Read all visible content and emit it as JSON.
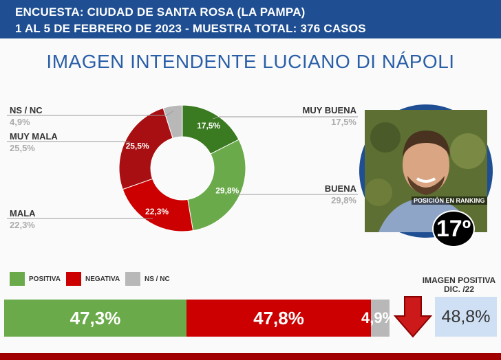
{
  "header": {
    "line1": "ENCUESTA: CIUDAD DE SANTA ROSA (LA PAMPA)",
    "line2": "1 AL 5 DE FEBRERO DE 2023 - MUESTRA TOTAL: 376 CASOS"
  },
  "title": "IMAGEN INTENDENTE  LUCIANO DI NÁPOLI",
  "colors": {
    "header_bg": "#1f4f92",
    "positive": "#6aaa4a",
    "positive_dark": "#3a7a20",
    "negative": "#cc0000",
    "negative_dark": "#a80f12",
    "nsnc": "#b8b8b8",
    "previous_box": "#cfe0f5"
  },
  "chart_data": [
    {
      "type": "pie",
      "variant": "donut",
      "slices": [
        {
          "label": "MUY BUENA",
          "value": 17.5,
          "value_text": "17,5%",
          "color": "#3a7a20"
        },
        {
          "label": "BUENA",
          "value": 29.8,
          "value_text": "29,8%",
          "color": "#6aaa4a"
        },
        {
          "label": "MALA",
          "value": 22.3,
          "value_text": "22,3%",
          "color": "#cc0000"
        },
        {
          "label": "MUY MALA",
          "value": 25.5,
          "value_text": "25,5%",
          "color": "#a80f12"
        },
        {
          "label": "NS / NC",
          "value": 4.9,
          "value_text": "4,9%",
          "color": "#b8b8b8"
        }
      ]
    },
    {
      "type": "bar",
      "orientation": "horizontal",
      "stacked": true,
      "legend": [
        {
          "label": "POSITIVA",
          "color": "#6aaa4a"
        },
        {
          "label": "NEGATIVA",
          "color": "#cc0000"
        },
        {
          "label": "NS / NC",
          "color": "#b8b8b8"
        }
      ],
      "series": [
        {
          "name": "POSITIVA",
          "value": 47.3,
          "value_text": "47,3%",
          "color": "#6aaa4a"
        },
        {
          "name": "NEGATIVA",
          "value": 47.8,
          "value_text": "47,8%",
          "color": "#cc0000"
        },
        {
          "name": "NS / NC",
          "value": 4.9,
          "value_text": "4,9%",
          "color": "#b8b8b8"
        }
      ]
    }
  ],
  "ranking": {
    "label": "POSICIÓN EN RANKING",
    "value": "17º"
  },
  "previous": {
    "title_line1": "IMAGEN POSITIVA",
    "title_line2": "DIC. /22",
    "value": "48,8%",
    "trend_icon": "down-arrow-icon"
  }
}
